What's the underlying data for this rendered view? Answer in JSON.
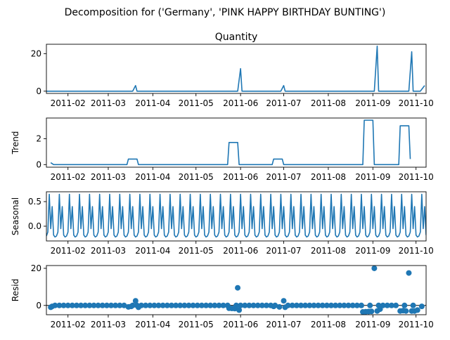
{
  "figure": {
    "suptitle": "Decomposition for ('Germany', 'PINK HAPPY BIRTHDAY BUNTING')"
  },
  "colors": {
    "line": "#1f77b4",
    "axis": "#000000",
    "background": "#ffffff"
  },
  "chart_data": [
    {
      "type": "line",
      "title": "Quantity",
      "ylabel": "",
      "xlim": [
        0,
        264
      ],
      "ylim": [
        -1.2,
        25
      ],
      "yticks": [
        0,
        20
      ],
      "xticks": [
        {
          "x": 15,
          "label": "2011-02"
        },
        {
          "x": 43,
          "label": "2011-03"
        },
        {
          "x": 74,
          "label": "2011-04"
        },
        {
          "x": 104,
          "label": "2011-05"
        },
        {
          "x": 135,
          "label": "2011-06"
        },
        {
          "x": 165,
          "label": "2011-07"
        },
        {
          "x": 196,
          "label": "2011-08"
        },
        {
          "x": 227,
          "label": "2011-09"
        },
        {
          "x": 257,
          "label": "2011-10"
        }
      ],
      "series": [
        {
          "values": [
            [
              0,
              0
            ],
            [
              60,
              0
            ],
            [
              62,
              3
            ],
            [
              63,
              0
            ],
            [
              133,
              0
            ],
            [
              135,
              12
            ],
            [
              136,
              0
            ],
            [
              163,
              0
            ],
            [
              165,
              3
            ],
            [
              166,
              0
            ],
            [
              228,
              0
            ],
            [
              230,
              24
            ],
            [
              231,
              0
            ],
            [
              252,
              0
            ],
            [
              254,
              21
            ],
            [
              255,
              0
            ],
            [
              260,
              0
            ],
            [
              263,
              3
            ]
          ]
        }
      ]
    },
    {
      "type": "line",
      "title": "",
      "ylabel": "Trend",
      "xlim": [
        0,
        264
      ],
      "ylim": [
        -0.2,
        3.6
      ],
      "yticks": [
        0,
        2
      ],
      "xticks": [
        {
          "x": 15,
          "label": "2011-02"
        },
        {
          "x": 43,
          "label": "2011-03"
        },
        {
          "x": 74,
          "label": "2011-04"
        },
        {
          "x": 104,
          "label": "2011-05"
        },
        {
          "x": 135,
          "label": "2011-06"
        },
        {
          "x": 165,
          "label": "2011-07"
        },
        {
          "x": 196,
          "label": "2011-08"
        },
        {
          "x": 227,
          "label": "2011-09"
        },
        {
          "x": 257,
          "label": "2011-10"
        }
      ],
      "series": [
        {
          "values": [
            [
              3,
              0.15
            ],
            [
              5,
              0
            ],
            [
              56,
              0
            ],
            [
              57,
              0.43
            ],
            [
              63,
              0.43
            ],
            [
              64,
              0
            ],
            [
              126,
              0
            ],
            [
              127,
              1.71
            ],
            [
              133,
              1.71
            ],
            [
              134,
              0
            ],
            [
              157,
              0
            ],
            [
              158,
              0.43
            ],
            [
              164,
              0.43
            ],
            [
              165,
              0
            ],
            [
              220,
              0
            ],
            [
              221,
              3.43
            ],
            [
              227,
              3.43
            ],
            [
              228,
              0
            ],
            [
              245,
              0
            ],
            [
              246,
              3
            ],
            [
              252,
              3
            ],
            [
              253,
              0.43
            ]
          ]
        }
      ]
    },
    {
      "type": "line",
      "title": "",
      "ylabel": "Seasonal",
      "xlim": [
        0,
        264
      ],
      "ylim": [
        -0.3,
        0.7
      ],
      "yticks": [
        0.0,
        0.5
      ],
      "ytick_labels": [
        "0.0",
        "0.5"
      ],
      "xticks": [
        {
          "x": 15,
          "label": "2011-02"
        },
        {
          "x": 43,
          "label": "2011-03"
        },
        {
          "x": 74,
          "label": "2011-04"
        },
        {
          "x": 104,
          "label": "2011-05"
        },
        {
          "x": 135,
          "label": "2011-06"
        },
        {
          "x": 165,
          "label": "2011-07"
        },
        {
          "x": 196,
          "label": "2011-08"
        },
        {
          "x": 227,
          "label": "2011-09"
        },
        {
          "x": 257,
          "label": "2011-10"
        }
      ],
      "seasonal_period": 7,
      "seasonal_pattern": [
        -0.2,
        -0.12,
        0.65,
        -0.05,
        0.4,
        -0.18,
        -0.22
      ],
      "seasonal_start": 0,
      "seasonal_end": 264
    },
    {
      "type": "scatter",
      "title": "",
      "ylabel": "Resid",
      "xlim": [
        0,
        264
      ],
      "ylim": [
        -5,
        21.5
      ],
      "yticks": [
        0,
        20
      ],
      "zero_line": true,
      "xticks": [
        {
          "x": 15,
          "label": "2011-02"
        },
        {
          "x": 43,
          "label": "2011-03"
        },
        {
          "x": 74,
          "label": "2011-04"
        },
        {
          "x": 104,
          "label": "2011-05"
        },
        {
          "x": 135,
          "label": "2011-06"
        },
        {
          "x": 165,
          "label": "2011-07"
        },
        {
          "x": 196,
          "label": "2011-08"
        },
        {
          "x": 227,
          "label": "2011-09"
        },
        {
          "x": 257,
          "label": "2011-10"
        }
      ],
      "baseline": {
        "start": 3,
        "end": 263,
        "step": 3,
        "value": 0
      },
      "series": [
        {
          "values": [
            [
              3,
              -1
            ],
            [
              4,
              -0.5
            ],
            [
              57,
              -0.8
            ],
            [
              59,
              -0.5
            ],
            [
              62,
              2.5
            ],
            [
              64,
              -1
            ],
            [
              127,
              -1.5
            ],
            [
              129,
              -1.6
            ],
            [
              131,
              -1.7
            ],
            [
              133,
              9.5
            ],
            [
              134,
              -2.5
            ],
            [
              158,
              -0.5
            ],
            [
              162,
              -0.8
            ],
            [
              165,
              2.5
            ],
            [
              166,
              -1
            ],
            [
              220,
              -3.5
            ],
            [
              222,
              -3.4
            ],
            [
              224,
              -3.3
            ],
            [
              226,
              -3.2
            ],
            [
              228,
              20
            ],
            [
              230,
              -3
            ],
            [
              232,
              -2
            ],
            [
              246,
              -3
            ],
            [
              248,
              -2.8
            ],
            [
              250,
              -3
            ],
            [
              252,
              17.5
            ],
            [
              254,
              -3
            ],
            [
              256,
              -3
            ],
            [
              258,
              -2.5
            ],
            [
              261,
              -0.5
            ]
          ]
        }
      ]
    }
  ]
}
